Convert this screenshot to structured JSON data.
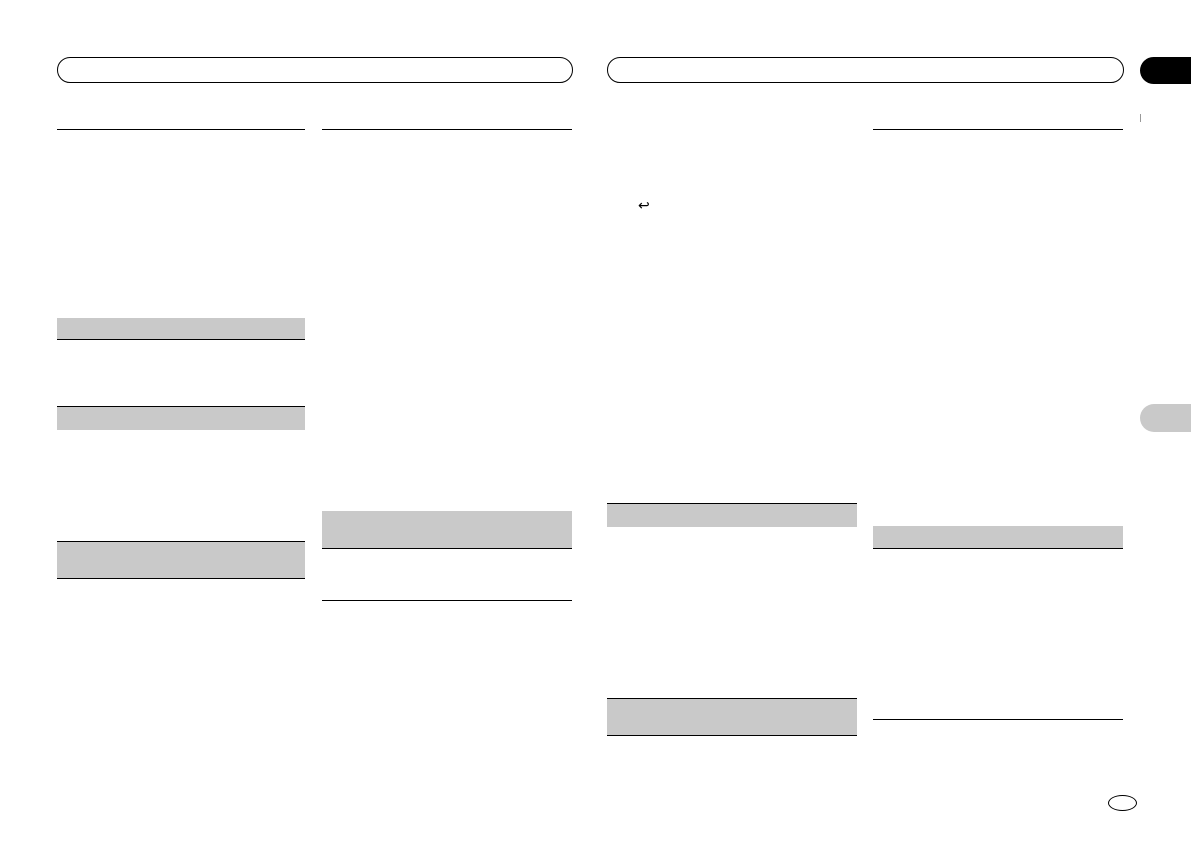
{
  "colors": {
    "section_band": "#c9c9c9",
    "rule": "#000000",
    "tab": "#000000"
  },
  "icons": {
    "return_icon": "↩",
    "language_tab": "black-tab",
    "section_tab": "gray-tab",
    "page_oval": "oval"
  }
}
